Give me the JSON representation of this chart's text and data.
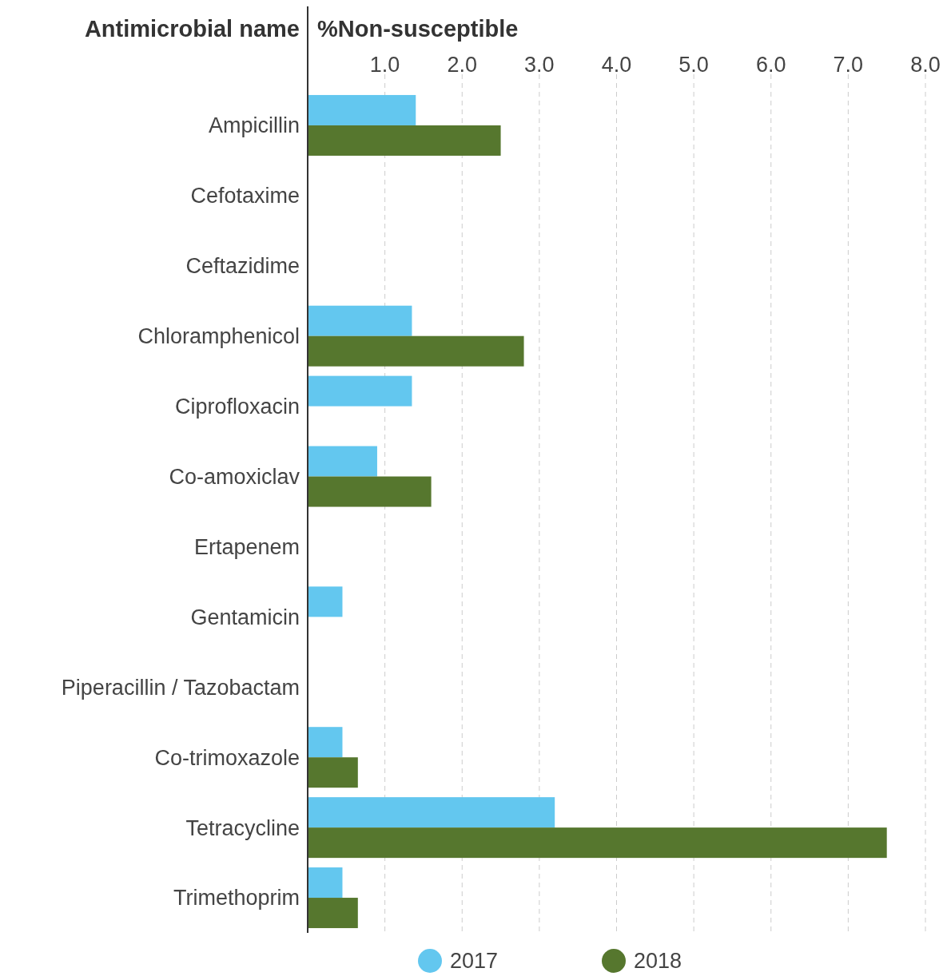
{
  "chart_data": {
    "type": "bar",
    "orientation": "horizontal",
    "xlabel": "%Non-susceptible",
    "ylabel": "Antimicrobial name",
    "categories": [
      "Ampicillin",
      "Cefotaxime",
      "Ceftazidime",
      "Chloramphenicol",
      "Ciprofloxacin",
      "Co-amoxiclav",
      "Ertapenem",
      "Gentamicin",
      "Piperacillin / Tazobactam",
      "Co-trimoxazole",
      "Tetracycline",
      "Trimethoprim"
    ],
    "series": [
      {
        "name": "2017",
        "color": "#63c7ef",
        "values": [
          1.4,
          null,
          null,
          1.35,
          1.35,
          0.9,
          null,
          0.45,
          null,
          0.45,
          3.2,
          0.45
        ]
      },
      {
        "name": "2018",
        "color": "#56772e",
        "values": [
          2.5,
          null,
          null,
          2.8,
          null,
          1.6,
          null,
          null,
          null,
          0.65,
          7.5,
          0.65
        ]
      }
    ],
    "xlim": [
      0,
      8
    ],
    "xticks": [
      {
        "value": 1,
        "label": "1.0"
      },
      {
        "value": 2,
        "label": "2.0"
      },
      {
        "value": 3,
        "label": "3.0"
      },
      {
        "value": 4,
        "label": "4.0"
      },
      {
        "value": 5,
        "label": "5.0"
      },
      {
        "value": 6,
        "label": "6.0"
      },
      {
        "value": 7,
        "label": "7.0"
      },
      {
        "value": 8,
        "label": "8.0"
      }
    ],
    "grid": "x",
    "legend": "bottom"
  }
}
